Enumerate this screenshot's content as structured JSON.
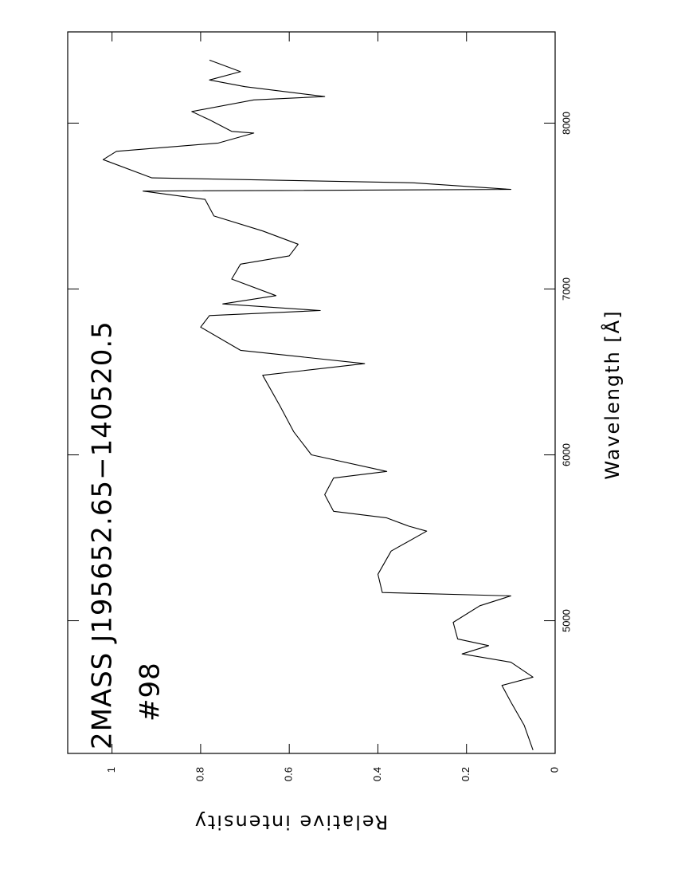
{
  "chart_data": {
    "type": "line",
    "title": "2MASS J195652.65−140520.5",
    "subtitle": "#98",
    "x_label": "Wavelength   [Å]",
    "y_label": "Relative intensity",
    "x": [
      4220,
      4370,
      4510,
      4610,
      4660,
      4750,
      4800,
      4850,
      4890,
      4990,
      5090,
      5150,
      5170,
      5280,
      5420,
      5540,
      5570,
      5620,
      5660,
      5760,
      5860,
      5900,
      6000,
      6140,
      6290,
      6480,
      6550,
      6630,
      6770,
      6840,
      6870,
      6910,
      6960,
      7060,
      7150,
      7200,
      7270,
      7350,
      7440,
      7540,
      7590,
      7600,
      7640,
      7670,
      7780,
      7830,
      7880,
      7940,
      7950,
      8020,
      8070,
      8140,
      8160,
      8220,
      8260,
      8310,
      8380
    ],
    "values": [
      0.05,
      0.07,
      0.1,
      0.12,
      0.05,
      0.1,
      0.21,
      0.15,
      0.22,
      0.23,
      0.17,
      0.1,
      0.39,
      0.4,
      0.37,
      0.29,
      0.33,
      0.38,
      0.5,
      0.52,
      0.5,
      0.38,
      0.55,
      0.59,
      0.62,
      0.66,
      0.43,
      0.71,
      0.8,
      0.78,
      0.53,
      0.75,
      0.63,
      0.73,
      0.71,
      0.6,
      0.58,
      0.66,
      0.77,
      0.79,
      0.93,
      0.1,
      0.32,
      0.91,
      1.02,
      0.99,
      0.76,
      0.68,
      0.73,
      0.78,
      0.82,
      0.68,
      0.52,
      0.7,
      0.78,
      0.71,
      0.78
    ],
    "color": "#000000",
    "xlim": [
      4200,
      8550
    ],
    "ylim": [
      0,
      1.1
    ],
    "xticks": [
      5000,
      6000,
      7000,
      8000
    ],
    "yticks": [
      0,
      0.2,
      0.4,
      0.6,
      0.8,
      1
    ]
  }
}
